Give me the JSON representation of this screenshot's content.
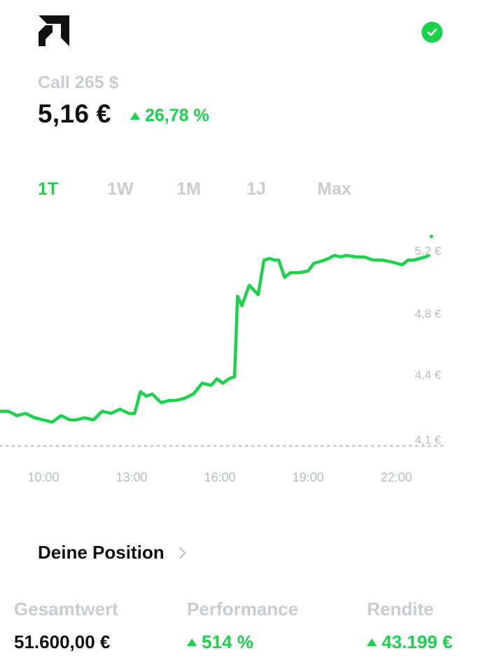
{
  "header": {
    "logo_icon": "amd-logo-icon",
    "status_icon": "check-circle-icon",
    "accent": "#1bd24b"
  },
  "instrument": {
    "title": "Call 265 $",
    "price": "5,16 €",
    "change": "26,78 %",
    "change_direction": "up"
  },
  "tabs": [
    {
      "label": "1T",
      "active": true
    },
    {
      "label": "1W",
      "active": false
    },
    {
      "label": "1M",
      "active": false
    },
    {
      "label": "1J",
      "active": false
    },
    {
      "label": "Max",
      "active": false
    }
  ],
  "chart_data": {
    "type": "line",
    "x_tick_labels": [
      "10:00",
      "13:00",
      "16:00",
      "19:00",
      "22:00"
    ],
    "y_tick_labels": [
      "5,2 €",
      "4,8 €",
      "4,4 €",
      "4,1 €"
    ],
    "reference_line": {
      "value": 4.07,
      "label": "4,1 €",
      "style": "dotted"
    },
    "ylim": [
      4.05,
      5.3
    ],
    "xlim": [
      8.5,
      23.5
    ],
    "grid": false,
    "series": [
      {
        "color": "#1bd24b",
        "x": [
          8.5,
          8.8,
          9.1,
          9.4,
          9.7,
          10.0,
          10.3,
          10.6,
          10.9,
          11.1,
          11.4,
          11.7,
          12.0,
          12.3,
          12.6,
          12.9,
          13.1,
          13.3,
          13.5,
          13.7,
          14.0,
          14.3,
          14.5,
          14.8,
          15.1,
          15.4,
          15.7,
          15.9,
          16.1,
          16.3,
          16.5,
          16.6,
          16.75,
          16.9,
          17.0,
          17.15,
          17.3,
          17.5,
          17.7,
          17.85,
          18.0,
          18.2,
          18.4,
          18.7,
          19.0,
          19.2,
          19.4,
          19.7,
          19.9,
          20.1,
          20.3,
          20.6,
          20.9,
          21.2,
          21.5,
          21.8,
          22.0,
          22.2,
          22.4,
          22.6,
          22.8,
          23.0,
          23.1
        ],
        "values": [
          4.23,
          4.23,
          4.21,
          4.22,
          4.2,
          4.19,
          4.18,
          4.21,
          4.19,
          4.19,
          4.2,
          4.19,
          4.23,
          4.22,
          4.24,
          4.22,
          4.22,
          4.32,
          4.3,
          4.31,
          4.27,
          4.28,
          4.28,
          4.29,
          4.31,
          4.36,
          4.35,
          4.38,
          4.36,
          4.38,
          4.39,
          4.91,
          4.85,
          4.93,
          4.98,
          4.95,
          4.92,
          5.14,
          5.15,
          5.14,
          5.14,
          5.03,
          5.06,
          5.06,
          5.07,
          5.12,
          5.13,
          5.15,
          5.17,
          5.16,
          5.17,
          5.16,
          5.16,
          5.14,
          5.14,
          5.13,
          5.12,
          5.11,
          5.14,
          5.14,
          5.15,
          5.16,
          5.17
        ]
      }
    ]
  },
  "position": {
    "title": "Deine Position",
    "stats": [
      {
        "label": "Gesamtwert",
        "value": "51.600,00 €",
        "trend": "none"
      },
      {
        "label": "Performance",
        "value": "514 %",
        "trend": "up"
      },
      {
        "label": "Rendite",
        "value": "43.199 €",
        "trend": "up"
      }
    ]
  }
}
